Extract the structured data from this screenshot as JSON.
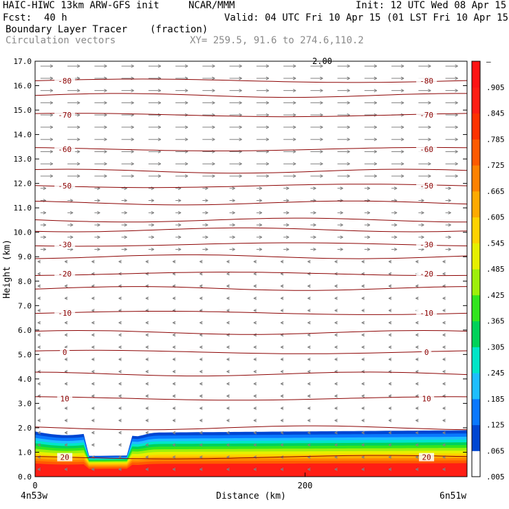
{
  "header": {
    "model": "HAIC-HIWC 13km ARW-GFS init",
    "org": "NCAR/MMM",
    "init": "Init: 12 UTC Wed 08 Apr 15",
    "fcst_label": "Fcst:",
    "fcst_value": "40 h",
    "valid": "Valid: 04 UTC Fri 10 Apr 15 (01 LST Fri 10 Apr 15)",
    "field": "Boundary Layer Tracer",
    "units": "(fraction)",
    "vectors": "Circulation vectors",
    "xy": "XY= 259.5, 91.6 to 274.6,110.2"
  },
  "colors": {
    "contour": "#8b0000",
    "vector": "#808080",
    "palette": [
      "#ffffff",
      "#0046d2",
      "#0a78ff",
      "#1ebeff",
      "#00e6c8",
      "#00d25a",
      "#32e61e",
      "#9ef00a",
      "#e6f000",
      "#ffd200",
      "#ffaa00",
      "#ff8200",
      "#ff5a00",
      "#ff3200",
      "#ff1e14",
      "#ff1414"
    ]
  },
  "chart_data": {
    "type": "contour",
    "xlabel": "Distance (km)",
    "ylabel": "Height (km)",
    "xlim": [
      0,
      320
    ],
    "ylim": [
      0.0,
      17.0
    ],
    "x_ticks": [
      0,
      200
    ],
    "x_tick_labels": [
      "0",
      "200"
    ],
    "y_ticks": [
      0.0,
      1.0,
      2.0,
      3.0,
      4.0,
      5.0,
      6.0,
      7.0,
      8.0,
      9.0,
      10.0,
      11.0,
      12.0,
      13.0,
      14.0,
      15.0,
      16.0,
      17.0
    ],
    "y_tick_labels": [
      "0.0",
      "1.0",
      "2.0",
      "3.0",
      "4.0",
      "5.0",
      "6.0",
      "7.0",
      "8.0",
      "9.0",
      "10.0",
      "11.0",
      "12.0",
      "13.0",
      "14.0",
      "15.0",
      "16.0",
      "17.0"
    ],
    "endpoint_left": "4n53w",
    "endpoint_right": "6n51w",
    "vector_scale_label": "2.00",
    "colorbar_labels": [
      "–",
      ".905",
      ".845",
      ".785",
      ".725",
      ".665",
      ".605",
      ".545",
      ".485",
      ".425",
      ".365",
      ".305",
      ".245",
      ".185",
      ".125",
      ".065",
      ".005"
    ],
    "temperature_contours": [
      {
        "label": "-80",
        "height": 16.2
      },
      {
        "label": "-70",
        "height": 14.8
      },
      {
        "label": "-60",
        "height": 13.4
      },
      {
        "label": "-50",
        "height": 11.9
      },
      {
        "label": "-30",
        "height": 9.5
      },
      {
        "label": "-20",
        "height": 8.3
      },
      {
        "label": "-10",
        "height": 6.7
      },
      {
        "label": "0",
        "height": 5.1
      },
      {
        "label": "10",
        "height": 3.2
      },
      {
        "label": "20",
        "height": 0.8
      }
    ],
    "tracer_layer": {
      "top_left_km": 1.8,
      "top_right_km": 1.9,
      "gap_start_km": 40,
      "gap_end_km": 70
    }
  }
}
